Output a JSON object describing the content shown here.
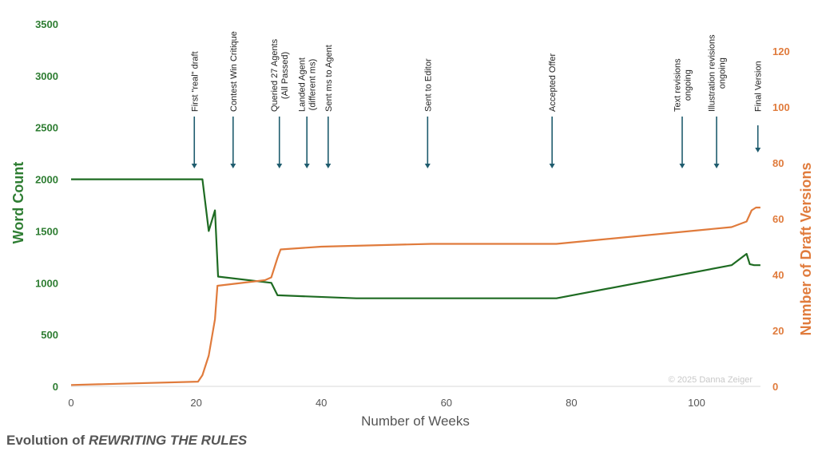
{
  "chart_data": {
    "type": "line",
    "title": "Evolution of ",
    "title_italic": "REWRITING THE RULES",
    "xlabel": "Number of Weeks",
    "ylabel_left": "Word Count",
    "ylabel_right": "Number of Draft Versions",
    "xlim": [
      0,
      110
    ],
    "ylim_left": [
      0,
      3500
    ],
    "ylim_right": [
      0,
      130
    ],
    "x_ticks": [
      0,
      20,
      40,
      60,
      80,
      100
    ],
    "y_left_ticks": [
      0,
      500,
      1000,
      1500,
      2000,
      2500,
      3000,
      3500
    ],
    "y_right_ticks": [
      0,
      20,
      40,
      60,
      80,
      100,
      120
    ],
    "grid": false,
    "watermark": "© 2025 Danna Zeiger",
    "series": [
      {
        "name": "Word Count",
        "axis": "left",
        "color": "#1e6b22",
        "x": [
          0,
          21,
          22,
          23,
          23.5,
          32,
          33,
          45.6,
          77.6,
          105.6,
          108,
          108.5,
          109.2,
          110.2
        ],
        "y": [
          2000,
          2000,
          1500,
          1700,
          1060,
          1000,
          880,
          850,
          850,
          1170,
          1280,
          1180,
          1170,
          1170
        ]
      },
      {
        "name": "Number of Draft Versions",
        "axis": "right",
        "color": "#e07b3c",
        "x": [
          0,
          20.3,
          21,
          22,
          23,
          23.4,
          31,
          32,
          33,
          33.5,
          40,
          57.6,
          61.5,
          77.6,
          105.6,
          108,
          108.8,
          109.5,
          110.2
        ],
        "y": [
          0.5,
          1.7,
          4,
          11,
          24,
          36,
          38,
          39,
          46,
          49,
          50,
          51,
          51,
          51,
          57,
          59,
          63,
          64,
          64
        ]
      }
    ],
    "annotations": [
      {
        "x": 19.7,
        "lines": [
          "First \"real\" draft"
        ]
      },
      {
        "x": 25.9,
        "lines": [
          "Contest Win Critique"
        ]
      },
      {
        "x": 33.3,
        "lines": [
          "Queried 27 Agents",
          "(All Passed)"
        ]
      },
      {
        "x": 37.7,
        "lines": [
          "Landed Agent",
          "(different ms)"
        ]
      },
      {
        "x": 41.1,
        "lines": [
          "Sent ms to Agent"
        ]
      },
      {
        "x": 57.0,
        "lines": [
          "Sent to Editor"
        ]
      },
      {
        "x": 76.9,
        "lines": [
          "Accepted Offer"
        ]
      },
      {
        "x": 97.7,
        "lines": [
          "Text revisions",
          "ongoing"
        ]
      },
      {
        "x": 103.2,
        "lines": [
          "Illustration revisions",
          "ongoing"
        ]
      },
      {
        "x": 109.8,
        "lines": [
          "Final Version"
        ]
      }
    ],
    "colors": {
      "left": "#2e7d32",
      "right": "#e07b3c",
      "arrow": "#1f5c6e"
    }
  }
}
